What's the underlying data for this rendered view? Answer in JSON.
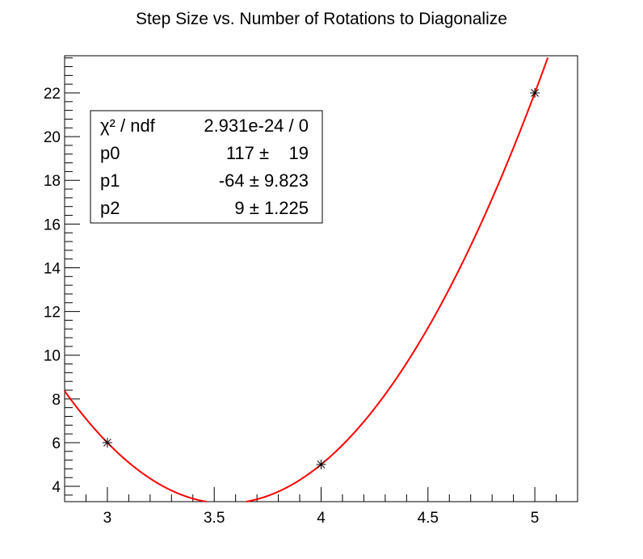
{
  "chart_data": {
    "type": "scatter",
    "title": "Step Size vs. Number of Rotations to Diagonalize",
    "xlabel": "",
    "ylabel": "",
    "xlim": [
      2.8,
      5.2
    ],
    "ylim": [
      3.3,
      23.7
    ],
    "x_ticks": [
      3,
      3.5,
      4,
      4.5,
      5
    ],
    "x_tick_labels": [
      "3",
      "3.5",
      "4",
      "4.5",
      "5"
    ],
    "y_ticks": [
      4,
      6,
      8,
      10,
      12,
      14,
      16,
      18,
      20,
      22
    ],
    "y_tick_labels": [
      "4",
      "6",
      "8",
      "10",
      "12",
      "14",
      "16",
      "18",
      "20",
      "22"
    ],
    "points": [
      {
        "x": 3,
        "y": 6
      },
      {
        "x": 4,
        "y": 5
      },
      {
        "x": 5,
        "y": 22
      }
    ],
    "fit": {
      "function": "p0 + p1*x + p2*x^2",
      "p0": 117,
      "p1": -64,
      "p2": 9,
      "color": "#ff0000"
    },
    "stats_box": {
      "rows": [
        {
          "name": "χ² / ndf",
          "value": "2.931e-24 / 0"
        },
        {
          "name": "p0",
          "value": "117 ±    19"
        },
        {
          "name": "p1",
          "value": "-64 ± 9.823"
        },
        {
          "name": "p2",
          "value": "9 ± 1.225"
        }
      ]
    },
    "grid": false,
    "marker": "asterisk",
    "marker_color": "#000000"
  }
}
